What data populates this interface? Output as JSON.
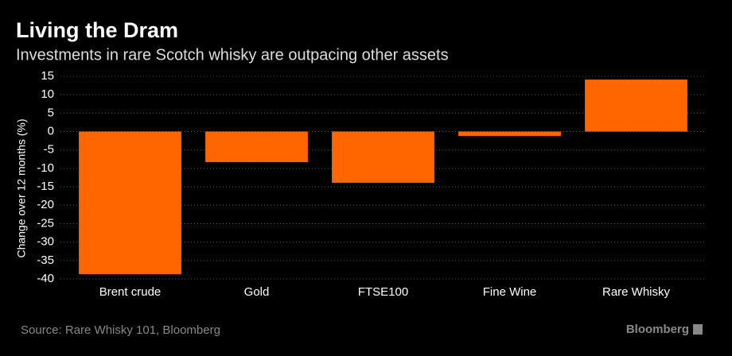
{
  "chart_data": {
    "type": "bar",
    "title": "Living the Dram",
    "subtitle": "Investments in rare Scotch whisky are outpacing other assets",
    "y_label": "Change over 12 months (%)",
    "categories": [
      "Brent crude",
      "Gold",
      "FTSE100",
      "Fine Wine",
      "Rare Whisky"
    ],
    "values": [
      -38.7,
      -8.3,
      -13.9,
      -1.2,
      14.1
    ],
    "color": "#ff6600",
    "ylim": [
      -40,
      15
    ],
    "yticks": [
      15,
      10,
      5,
      0,
      -5,
      -10,
      -15,
      -20,
      -25,
      -30,
      -35,
      -40
    ],
    "grid": true,
    "source": "Source: Rare Whisky 101, Bloomberg",
    "brand": "Bloomberg"
  }
}
